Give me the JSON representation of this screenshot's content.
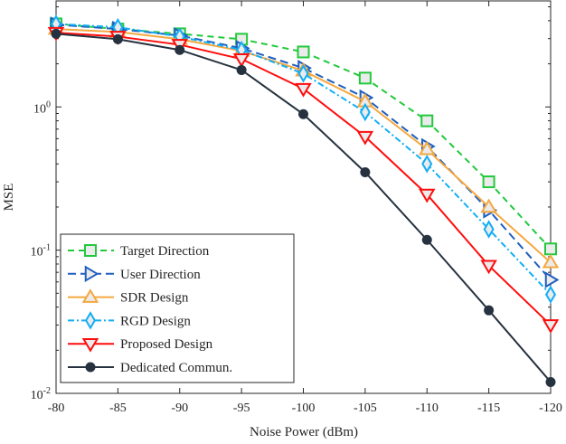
{
  "chart_data": {
    "type": "line",
    "title": "",
    "xlabel": "Noise Power (dBm)",
    "ylabel": "MSE",
    "yscale": "log",
    "xlim": [
      -80,
      -120
    ],
    "ylim": [
      0.01,
      5.5
    ],
    "x": [
      -80,
      -85,
      -90,
      -95,
      -100,
      -105,
      -110,
      -115,
      -120
    ],
    "xticks": [
      "-80",
      "-85",
      "-90",
      "-95",
      "-100",
      "-105",
      "-110",
      "-115",
      "-120"
    ],
    "yticks": [
      {
        "value": 0.01,
        "base": "10",
        "exp": "-2"
      },
      {
        "value": 0.1,
        "base": "10",
        "exp": "-1"
      },
      {
        "value": 1,
        "base": "10",
        "exp": "0"
      }
    ],
    "grid": false,
    "legend_position": "bottom-left",
    "series": [
      {
        "name": "Target Direction",
        "color": "#22c93c",
        "dash": "7,5",
        "marker": "square",
        "values": [
          3.8,
          3.5,
          3.24,
          2.97,
          2.42,
          1.59,
          0.8,
          0.3,
          0.102
        ]
      },
      {
        "name": "User Direction",
        "color": "#1f5fbf",
        "dash": "9,5",
        "marker": "triangle-right",
        "values": [
          3.75,
          3.5,
          3.15,
          2.57,
          1.87,
          1.16,
          0.53,
          0.19,
          0.062
        ]
      },
      {
        "name": "SDR Design",
        "color": "#f5a840",
        "dash": "",
        "marker": "triangle-up",
        "values": [
          3.5,
          3.34,
          2.97,
          2.46,
          1.79,
          1.09,
          0.505,
          0.2,
          0.082
        ]
      },
      {
        "name": "RGD Design",
        "color": "#12aef5",
        "dash": "7,3,2,3",
        "marker": "diamond",
        "values": [
          3.8,
          3.6,
          3.1,
          2.5,
          1.71,
          0.92,
          0.4,
          0.14,
          0.049
        ]
      },
      {
        "name": "Proposed Design",
        "color": "#ff0d0d",
        "dash": "",
        "marker": "triangle-down",
        "values": [
          3.3,
          3.1,
          2.72,
          2.16,
          1.34,
          0.62,
          0.245,
          0.078,
          0.03
        ]
      },
      {
        "name": "Dedicated Commun.",
        "color": "#26323f",
        "dash": "",
        "marker": "circle",
        "values": [
          3.24,
          2.97,
          2.5,
          1.81,
          0.89,
          0.35,
          0.118,
          0.038,
          0.012
        ]
      }
    ]
  }
}
